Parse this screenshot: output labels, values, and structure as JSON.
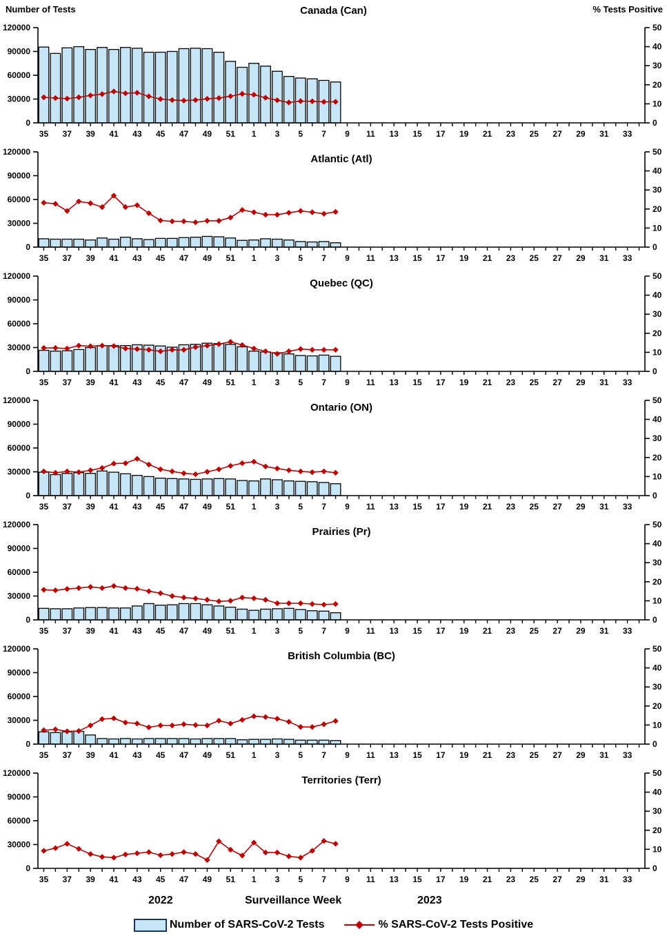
{
  "legend": {
    "bars_label": "Number of SARS-CoV-2 Tests",
    "line_label": "% SARS-CoV-2 Tests Positive"
  },
  "colors": {
    "bar_fill": "#C6E5F6",
    "bar_stroke": "#000000",
    "line": "#C00000",
    "axis": "#000000",
    "legend_swatch_border": "#17375E"
  },
  "chart_config": {
    "left_axis": {
      "title": "Number of Tests",
      "ticks": [
        0,
        30000,
        60000,
        90000,
        120000
      ],
      "max": 120000
    },
    "right_axis": {
      "title": "%  Tests Positive",
      "ticks": [
        0,
        10,
        20,
        30,
        40,
        50
      ],
      "max": 50
    },
    "x_axis": {
      "title": "Surveillance Week",
      "year_left": "2022",
      "year_right": "2023",
      "n_slots": 52,
      "tick_labels": [
        "35",
        "37",
        "39",
        "41",
        "43",
        "45",
        "47",
        "49",
        "51",
        "1",
        "3",
        "5",
        "7",
        "9",
        "11",
        "13",
        "15",
        "17",
        "19",
        "21",
        "23",
        "25",
        "27",
        "29",
        "31",
        "33"
      ]
    },
    "data_weeks": [
      35,
      36,
      37,
      38,
      39,
      40,
      41,
      42,
      43,
      44,
      45,
      46,
      47,
      48,
      49,
      50,
      51,
      52,
      1,
      2,
      3,
      4,
      5,
      6,
      7,
      8
    ]
  },
  "chart_data": [
    {
      "type": "bar+line",
      "region": "Canada (Can)",
      "tests": [
        95500,
        87500,
        94500,
        96000,
        92500,
        95000,
        92500,
        95000,
        94000,
        89000,
        89000,
        90000,
        93500,
        94000,
        93500,
        89000,
        77500,
        70000,
        75000,
        71500,
        65000,
        58500,
        56500,
        55500,
        53500,
        51500
      ],
      "pct_positive": [
        13.4,
        13.0,
        12.7,
        13.4,
        14.4,
        15.1,
        16.5,
        15.5,
        15.8,
        13.9,
        12.5,
        12.0,
        11.7,
        12.0,
        12.6,
        13.0,
        14.0,
        15.2,
        14.8,
        13.2,
        11.9,
        10.7,
        11.4,
        11.3,
        11.0,
        11.1
      ]
    },
    {
      "type": "bar+line",
      "region": "Atlantic (Atl)",
      "tests": [
        10500,
        10000,
        10000,
        10000,
        9000,
        11500,
        10000,
        12500,
        10500,
        9500,
        11000,
        11000,
        12000,
        12500,
        13500,
        13000,
        11500,
        8500,
        9000,
        10500,
        10000,
        9000,
        7000,
        6500,
        7000,
        5500
      ],
      "pct_positive": [
        23.3,
        22.7,
        19.0,
        24.0,
        23.0,
        21.0,
        27.0,
        21.0,
        22.0,
        17.8,
        14.0,
        13.5,
        13.5,
        13.0,
        13.8,
        13.8,
        15.5,
        19.5,
        18.3,
        17.0,
        17.0,
        18.0,
        19.0,
        18.3,
        17.5,
        18.5
      ]
    },
    {
      "type": "bar+line",
      "region": "Quebec (QC)",
      "tests": [
        26500,
        25500,
        26000,
        27500,
        30000,
        32500,
        32500,
        32500,
        33500,
        33000,
        32000,
        30500,
        33500,
        34000,
        35500,
        35000,
        34000,
        31000,
        25500,
        24500,
        23500,
        22000,
        20000,
        19500,
        20500,
        19000
      ],
      "pct_positive": [
        12.3,
        12.3,
        12.0,
        13.5,
        13.2,
        13.5,
        13.3,
        12.0,
        11.7,
        11.3,
        10.5,
        11.3,
        11.3,
        12.7,
        13.5,
        14.3,
        15.5,
        13.8,
        12.0,
        10.5,
        9.2,
        10.5,
        11.7,
        11.3,
        11.3,
        11.3
      ]
    },
    {
      "type": "bar+line",
      "region": "Ontario (ON)",
      "tests": [
        29500,
        26500,
        28000,
        29000,
        28000,
        31000,
        29500,
        27500,
        25500,
        24000,
        22000,
        21500,
        21000,
        20500,
        21000,
        21500,
        21000,
        19000,
        18500,
        21000,
        20000,
        18500,
        18000,
        17500,
        16500,
        15000
      ],
      "pct_positive": [
        12.7,
        12.0,
        12.7,
        12.3,
        13.3,
        14.5,
        16.8,
        17.0,
        19.3,
        16.3,
        13.8,
        12.7,
        11.7,
        11.2,
        12.5,
        13.8,
        15.6,
        17.0,
        17.8,
        15.3,
        14.2,
        13.3,
        12.7,
        12.3,
        12.7,
        12.0
      ]
    },
    {
      "type": "bar+line",
      "region": "Prairies (Pr)",
      "tests": [
        14500,
        14000,
        14000,
        15000,
        15500,
        15500,
        15000,
        15000,
        17500,
        20500,
        18500,
        19000,
        20500,
        20500,
        19000,
        17500,
        16000,
        13500,
        12000,
        13500,
        14000,
        14500,
        13000,
        11500,
        11000,
        9000
      ],
      "pct_positive": [
        15.8,
        15.5,
        16.2,
        16.7,
        17.3,
        16.7,
        17.8,
        16.7,
        16.3,
        15.0,
        14.0,
        12.5,
        11.7,
        11.2,
        10.5,
        9.7,
        10.0,
        11.7,
        11.3,
        10.5,
        8.7,
        8.7,
        8.7,
        8.3,
        8.0,
        8.3
      ]
    },
    {
      "type": "bar+line",
      "region": "British Columbia (BC)",
      "tests": [
        15500,
        14500,
        15500,
        16000,
        11500,
        7000,
        6500,
        7000,
        6500,
        7000,
        7000,
        7000,
        7000,
        6500,
        7000,
        7000,
        7000,
        5500,
        6000,
        6000,
        6500,
        6000,
        5000,
        5000,
        5000,
        4500
      ],
      "pct_positive": [
        7.3,
        7.7,
        6.7,
        6.9,
        9.8,
        13.1,
        13.5,
        11.3,
        10.8,
        8.8,
        9.8,
        9.8,
        10.4,
        10.0,
        9.8,
        12.3,
        10.8,
        12.7,
        14.6,
        14.2,
        13.3,
        11.7,
        9.0,
        9.0,
        10.4,
        12.1
      ]
    },
    {
      "type": "bar+line",
      "region": "Territories (Terr)",
      "tests": [
        0,
        0,
        0,
        0,
        0,
        0,
        0,
        0,
        0,
        0,
        0,
        0,
        0,
        0,
        0,
        0,
        0,
        0,
        0,
        0,
        0,
        0,
        0,
        0,
        0,
        0
      ],
      "pct_positive": [
        9.2,
        10.6,
        12.9,
        10.2,
        7.5,
        6.0,
        5.6,
        7.3,
        7.9,
        8.5,
        6.9,
        7.5,
        8.5,
        7.5,
        4.4,
        14.2,
        9.8,
        6.7,
        13.5,
        8.3,
        8.3,
        6.3,
        5.6,
        9.2,
        14.4,
        12.9
      ]
    }
  ]
}
